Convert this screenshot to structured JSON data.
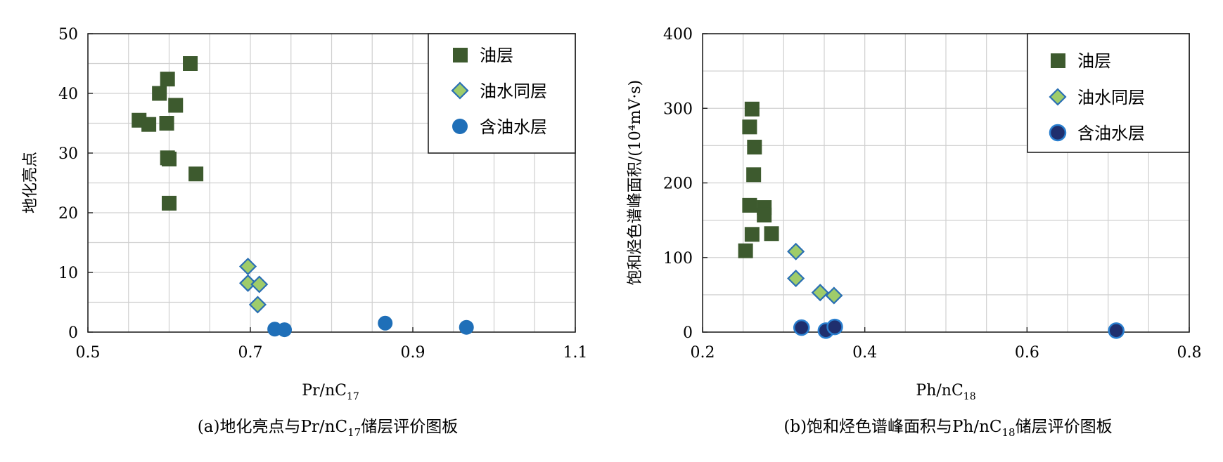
{
  "colors": {
    "oil": "#3d5a2e",
    "oil_water_fill": "#9fcc6a",
    "oil_water_stroke": "#2a6fb3",
    "water_a": "#1f6fb8",
    "water_b_fill": "#1f2f6e",
    "water_b_stroke": "#2a7fcf",
    "grid": "#d0d0d0"
  },
  "legend_labels": [
    "油层",
    "油水同层",
    "含油水层"
  ],
  "chart_data": [
    {
      "type": "scatter",
      "xlabel_main": "Pr/nC",
      "xlabel_sub": "17",
      "ylabel": "地化亮点",
      "caption_pre": "(a)地化亮点与Pr/nC",
      "caption_sub": "17",
      "caption_post": "储层评价图板",
      "xlim": [
        0.5,
        1.1
      ],
      "ylim": [
        0,
        50
      ],
      "xticks": [
        0.5,
        0.7,
        0.9,
        1.1
      ],
      "xtick_labels": [
        "0.5",
        "0.7",
        "0.9",
        "1.1"
      ],
      "yticks": [
        0,
        10,
        20,
        30,
        40,
        50
      ],
      "ytick_labels": [
        "0",
        "10",
        "20",
        "30",
        "40",
        "50"
      ],
      "grid": true,
      "legend_position": "top-right",
      "series": [
        {
          "name": "油层",
          "marker": "square",
          "x": [
            0.563,
            0.575,
            0.588,
            0.598,
            0.597,
            0.598,
            0.608,
            0.626,
            0.6,
            0.633,
            0.6
          ],
          "y": [
            35.5,
            34.8,
            40.0,
            42.4,
            35.0,
            29.2,
            38.0,
            45.0,
            21.6,
            26.5,
            29.0
          ]
        },
        {
          "name": "油水同层",
          "marker": "diamond",
          "x": [
            0.697,
            0.697,
            0.711,
            0.709
          ],
          "y": [
            11.0,
            8.2,
            8.0,
            4.6
          ]
        },
        {
          "name": "含油水层",
          "marker": "circle",
          "x": [
            0.73,
            0.742,
            0.866,
            0.966
          ],
          "y": [
            0.5,
            0.4,
            1.5,
            0.8
          ]
        }
      ]
    },
    {
      "type": "scatter",
      "xlabel_main": "Ph/nC",
      "xlabel_sub": "18",
      "ylabel": "饱和烃色谱峰面积/(10⁴mV·s)",
      "caption_pre": "(b)饱和烃色谱峰面积与Ph/nC",
      "caption_sub": "18",
      "caption_post": "储层评价图板",
      "xlim": [
        0.2,
        0.8
      ],
      "ylim": [
        0,
        400
      ],
      "xticks": [
        0.2,
        0.4,
        0.6,
        0.8
      ],
      "xtick_labels": [
        "0.2",
        "0.4",
        "0.6",
        "0.8"
      ],
      "yticks": [
        0,
        100,
        200,
        300,
        400
      ],
      "ytick_labels": [
        "0",
        "100",
        "200",
        "300",
        "400"
      ],
      "grid": true,
      "legend_position": "top-right",
      "series": [
        {
          "name": "油层",
          "marker": "square",
          "x": [
            0.261,
            0.258,
            0.264,
            0.263,
            0.258,
            0.276,
            0.276,
            0.261,
            0.285,
            0.253
          ],
          "y": [
            299,
            275,
            248,
            211,
            170,
            167,
            157,
            131,
            132,
            109
          ]
        },
        {
          "name": "油水同层",
          "marker": "diamond",
          "x": [
            0.315,
            0.315,
            0.345,
            0.362
          ],
          "y": [
            108,
            72,
            53,
            49
          ]
        },
        {
          "name": "含油水层",
          "marker": "circle",
          "x": [
            0.322,
            0.352,
            0.363,
            0.71
          ],
          "y": [
            6,
            2,
            7,
            2
          ]
        }
      ]
    }
  ]
}
